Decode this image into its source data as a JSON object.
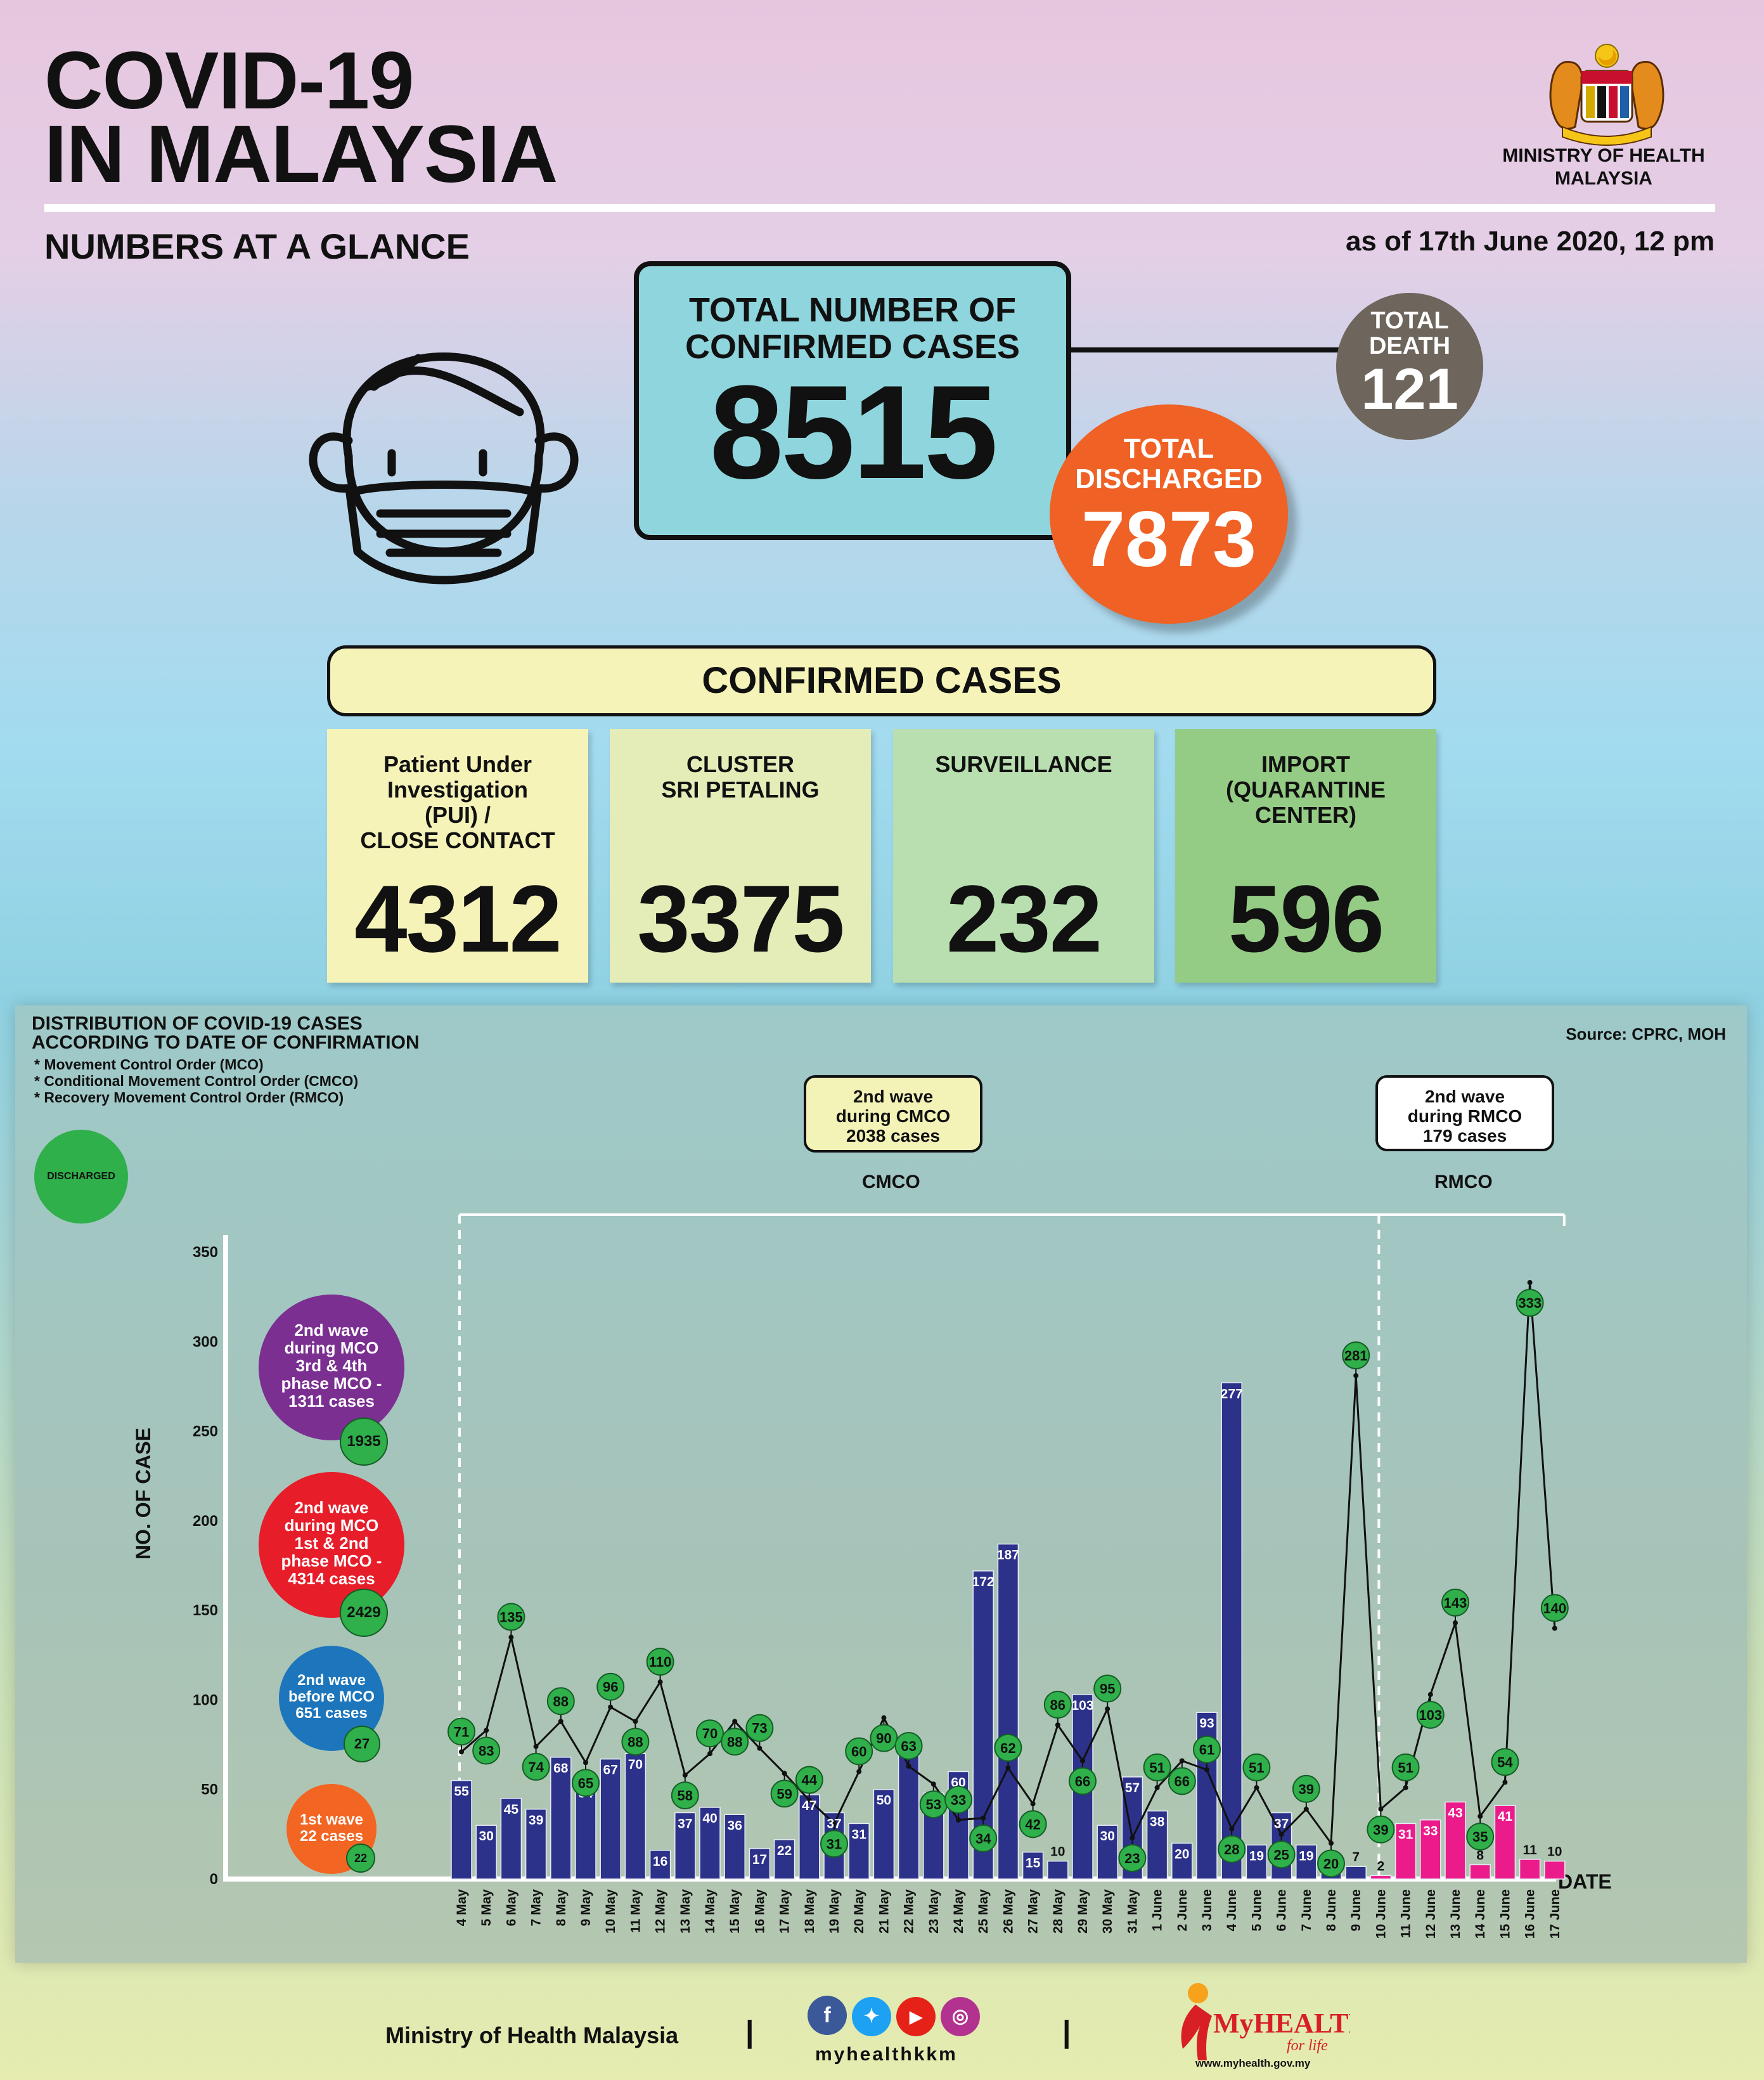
{
  "header": {
    "title_line1": "COVID-19",
    "title_line2": "IN MALAYSIA",
    "ministry_line1": "MINISTRY OF HEALTH",
    "ministry_line2": "MALAYSIA",
    "subtitle": "NUMBERS AT A GLANCE",
    "as_of": "as of 17th June 2020, 12 pm"
  },
  "totals": {
    "confirmed_label_line1": "TOTAL NUMBER OF",
    "confirmed_label_line2": "CONFIRMED CASES",
    "confirmed_value": "8515",
    "death_label_line1": "TOTAL",
    "death_label_line2": "DEATH",
    "death_value": "121",
    "discharged_label_line1": "TOTAL",
    "discharged_label_line2": "DISCHARGED",
    "discharged_value": "7873",
    "colors": {
      "confirmed": "#8fd5dd",
      "death": "#6e665c",
      "discharged": "#ef6124"
    }
  },
  "confirmed_cases": {
    "header": "CONFIRMED CASES",
    "cards": [
      {
        "label_lines": [
          "Patient Under",
          "Investigation",
          "(PUI) /",
          "CLOSE CONTACT"
        ],
        "value": "4312",
        "color": "#f5f3b8"
      },
      {
        "label_lines": [
          "CLUSTER",
          "SRI PETALING"
        ],
        "value": "3375",
        "color": "#e4ecb8"
      },
      {
        "label_lines": [
          "SURVEILLANCE"
        ],
        "value": "232",
        "color": "#b9dfb0"
      },
      {
        "label_lines": [
          "IMPORT",
          "(QUARANTINE",
          "CENTER)"
        ],
        "value": "596",
        "color": "#95cc85"
      }
    ]
  },
  "chart_section": {
    "title_line1": "DISTRIBUTION OF COVID-19 CASES",
    "title_line2": "ACCORDING TO DATE OF CONFIRMATION",
    "notes": [
      "* Movement Control Order (MCO)",
      "* Conditional Movement Control Order (CMCO)",
      "* Recovery Movement Control Order (RMCO)"
    ],
    "source": "Source: CPRC, MOH",
    "discharged_legend": "DISCHARGED",
    "cmco_callout": [
      "2nd wave",
      "during CMCO",
      "2038 cases"
    ],
    "rmco_callout": [
      "2nd wave",
      "during RMCO",
      "179 cases"
    ],
    "cmco_label": "CMCO",
    "rmco_label": "RMCO",
    "ylabel": "NO. OF CASE",
    "xlabel": "DATE",
    "waves": [
      {
        "lines": [
          "2nd wave",
          "during MCO",
          "3rd & 4th",
          "phase MCO -",
          "1311 cases"
        ],
        "discharged": "1935",
        "color": "#7b2f91"
      },
      {
        "lines": [
          "2nd wave",
          "during MCO",
          "1st & 2nd",
          "phase MCO -",
          "4314 cases"
        ],
        "discharged": "2429",
        "color": "#e71d2a"
      },
      {
        "lines": [
          "2nd wave",
          "before MCO",
          "651 cases"
        ],
        "discharged": "27",
        "color": "#1d76bb"
      },
      {
        "lines": [
          "1st wave",
          "22 cases"
        ],
        "discharged": "22",
        "color": "#f26522"
      }
    ]
  },
  "chart_data": {
    "type": "bar",
    "title": "DISTRIBUTION OF COVID-19 CASES ACCORDING TO DATE OF CONFIRMATION",
    "xlabel": "DATE",
    "ylabel": "NO. OF CASE",
    "ylim": [
      0,
      350
    ],
    "yticks": [
      0,
      50,
      100,
      150,
      200,
      250,
      300,
      350
    ],
    "categories": [
      "4 May",
      "5 May",
      "6 May",
      "7 May",
      "8 May",
      "9 May",
      "10 May",
      "11 May",
      "12 May",
      "13 May",
      "14 May",
      "15 May",
      "16 May",
      "17 May",
      "18 May",
      "19 May",
      "20 May",
      "21 May",
      "22 May",
      "23 May",
      "24 May",
      "25 May",
      "26 May",
      "27 May",
      "28 May",
      "29 May",
      "30 May",
      "31 May",
      "1 June",
      "2 June",
      "3 June",
      "4 June",
      "5 June",
      "6 June",
      "7 June",
      "8 June",
      "9 June",
      "10 June",
      "11 June",
      "12 June",
      "13 June",
      "14 June",
      "15 June",
      "16 June",
      "17 June"
    ],
    "series": [
      {
        "type": "bar",
        "values": [
          55,
          30,
          45,
          39,
          68,
          54,
          67,
          70,
          16,
          37,
          40,
          36,
          17,
          22,
          47,
          37,
          31,
          50,
          78,
          48,
          60,
          172,
          187,
          15,
          10,
          103,
          30,
          57,
          38,
          20,
          93,
          277,
          19,
          37,
          19,
          7,
          7,
          2,
          31,
          33,
          43,
          8,
          41,
          11,
          10
        ]
      },
      {
        "name": "DISCHARGED",
        "type": "line",
        "values": [
          71,
          83,
          135,
          74,
          88,
          65,
          96,
          88,
          110,
          58,
          70,
          88,
          73,
          59,
          44,
          31,
          60,
          90,
          63,
          53,
          33,
          34,
          62,
          42,
          86,
          66,
          95,
          23,
          51,
          66,
          61,
          28,
          51,
          25,
          39,
          20,
          281,
          39,
          51,
          103,
          143,
          35,
          54,
          333,
          140
        ]
      }
    ],
    "colors": {
      "cmco_bars": "#2c318a",
      "rmco_bars": "#ec1b8b",
      "discharged": "#2fb04a"
    },
    "rmco_start_category": "10 June",
    "grid": false
  },
  "footer": {
    "ministry": "Ministry of Health Malaysia",
    "handle": "myhealthkkm",
    "brand": "MyHEALTH",
    "brand_tagline": "for life",
    "url": "www.myhealth.gov.my"
  }
}
